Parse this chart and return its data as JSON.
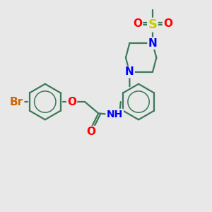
{
  "bg_color": "#e8e8e8",
  "bond_color": "#3a7a5a",
  "bond_width": 1.6,
  "atom_colors": {
    "Br": "#cc6600",
    "O": "#ff0000",
    "N": "#0000ff",
    "S": "#cccc00",
    "H": "#555555"
  },
  "font_size_atom": 11,
  "font_size_small": 9
}
